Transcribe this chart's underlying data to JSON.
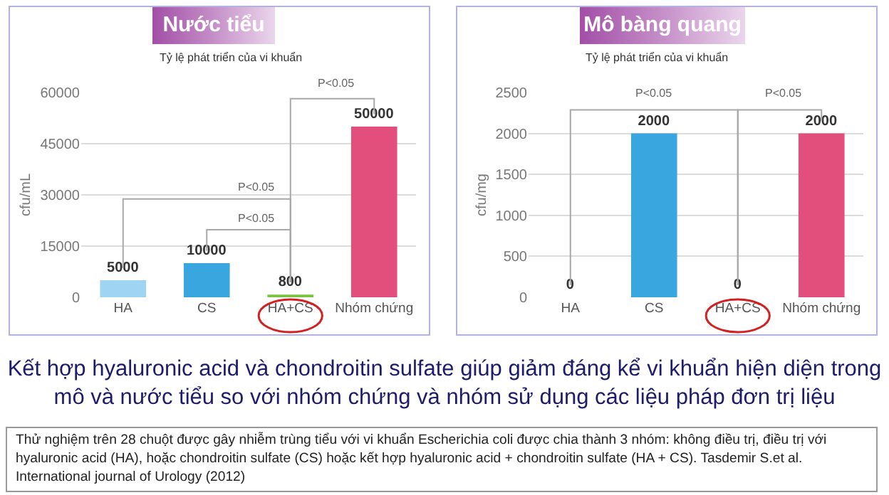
{
  "chart_data": [
    {
      "type": "bar",
      "title": "Nước tiểu",
      "subtitle": "Tỷ lệ phát triển của vi khuẩn",
      "ylabel": "cfu/mL",
      "categories": [
        "HA",
        "CS",
        "HA+CS",
        "Nhóm chứng"
      ],
      "values": [
        5000,
        10000,
        800,
        50000
      ],
      "colors": [
        "#9fd4f2",
        "#3aa6df",
        "#7cc242",
        "#e24f7c"
      ],
      "ylim": [
        0,
        60000
      ],
      "yticks": [
        0,
        15000,
        30000,
        45000,
        60000
      ],
      "grid": "y",
      "data_labels": true,
      "annotations": [
        "P<0.05",
        "P<0.05",
        "P<0.05"
      ]
    },
    {
      "type": "bar",
      "title": "Mô bàng quang",
      "subtitle": "Tỷ lệ phát triển của vi khuẩn",
      "ylabel": "cfu/mg",
      "categories": [
        "HA",
        "CS",
        "HA+CS",
        "Nhóm chứng"
      ],
      "values": [
        0,
        2000,
        0,
        2000
      ],
      "colors": [
        "#9fd4f2",
        "#3aa6df",
        "#7cc242",
        "#e24f7c"
      ],
      "ylim": [
        0,
        2500
      ],
      "yticks": [
        0,
        500,
        1000,
        1500,
        2000,
        2500
      ],
      "grid": "y",
      "data_labels": true,
      "annotations": [
        "P<0.05",
        "P<0.05",
        "Kết hợp hyaluronic acid và chondroitin sulfate giúp giảm đáng kể vi khuẩn hiện diện trong mô và nước tiểu so với nhóm chứng và nhóm sử dụng các liệu pháp đơn trị liệu",
        "Thử nghiệm trên 28 chuột được gây nhiễm trùng tiểu với vi khuẩn Escherichia coli được chia thành 3 nhóm: không điều trị, điều trị với hyaluronic acid (HA), hoặc chondroitin sulfate (CS) hoặc kết hợp hyaluronic acid + chondroitin sulfate (HA + CS). Tasdemir S.et al. International journal of Urology (2012)"
      ]
    }
  ]
}
